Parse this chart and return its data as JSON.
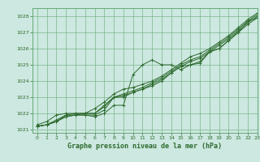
{
  "title": "Graphe pression niveau de la mer (hPa)",
  "background_color": "#cce8e0",
  "grid_color": "#66aa77",
  "line_color": "#2d6a2d",
  "xlim": [
    -0.5,
    23
  ],
  "ylim": [
    1020.8,
    1028.5
  ],
  "yticks": [
    1021,
    1022,
    1023,
    1024,
    1025,
    1026,
    1027,
    1028
  ],
  "xticks": [
    0,
    1,
    2,
    3,
    4,
    5,
    6,
    7,
    8,
    9,
    10,
    11,
    12,
    13,
    14,
    15,
    16,
    17,
    18,
    19,
    20,
    21,
    22,
    23
  ],
  "series": [
    [
      1021.2,
      1021.3,
      1021.5,
      1021.8,
      1021.9,
      1021.9,
      1021.8,
      1022.0,
      1022.5,
      1022.5,
      1024.4,
      1025.0,
      1025.3,
      1025.0,
      1025.0,
      1024.7,
      1025.0,
      1025.1,
      1025.8,
      1026.0,
      1026.5,
      1027.0,
      1027.7,
      1027.9
    ],
    [
      1021.2,
      1021.3,
      1021.5,
      1021.8,
      1021.9,
      1021.9,
      1021.9,
      1022.2,
      1023.0,
      1023.0,
      1023.3,
      1023.5,
      1023.7,
      1024.0,
      1024.5,
      1024.9,
      1025.0,
      1025.2,
      1025.8,
      1026.0,
      1026.5,
      1027.0,
      1027.5,
      1027.9
    ],
    [
      1021.2,
      1021.3,
      1021.5,
      1021.9,
      1021.9,
      1022.0,
      1022.0,
      1022.4,
      1023.0,
      1023.1,
      1023.3,
      1023.5,
      1023.8,
      1024.1,
      1024.5,
      1024.9,
      1025.2,
      1025.4,
      1025.8,
      1026.2,
      1026.6,
      1027.1,
      1027.6,
      1028.0
    ],
    [
      1021.2,
      1021.3,
      1021.6,
      1021.9,
      1022.0,
      1022.0,
      1022.0,
      1022.5,
      1023.0,
      1023.2,
      1023.4,
      1023.6,
      1023.9,
      1024.2,
      1024.6,
      1025.0,
      1025.3,
      1025.5,
      1025.9,
      1026.3,
      1026.7,
      1027.2,
      1027.7,
      1028.1
    ],
    [
      1021.3,
      1021.5,
      1021.9,
      1022.0,
      1022.0,
      1022.0,
      1022.3,
      1022.7,
      1023.2,
      1023.5,
      1023.6,
      1023.8,
      1024.0,
      1024.3,
      1024.7,
      1025.1,
      1025.5,
      1025.7,
      1026.0,
      1026.4,
      1026.8,
      1027.3,
      1027.8,
      1028.2
    ]
  ],
  "marker": "+",
  "markersize": 3,
  "linewidth": 0.7,
  "tick_fontsize": 4.5,
  "label_fontsize": 6.0,
  "figsize": [
    3.2,
    2.0
  ],
  "dpi": 100
}
